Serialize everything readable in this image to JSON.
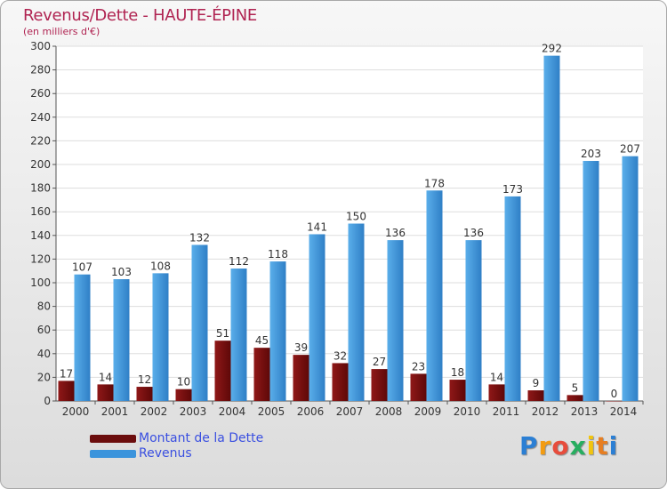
{
  "chart_data": {
    "type": "bar",
    "title": "Revenus/Dette - HAUTE-ÉPINE",
    "subtitle": "(en milliers d'€)",
    "categories": [
      "2000",
      "2001",
      "2002",
      "2003",
      "2004",
      "2005",
      "2006",
      "2007",
      "2008",
      "2009",
      "2010",
      "2011",
      "2012",
      "2013",
      "2014"
    ],
    "series": [
      {
        "name": "Montant de la Dette",
        "color": "#7a1010",
        "values": [
          17,
          14,
          12,
          10,
          51,
          45,
          39,
          32,
          27,
          23,
          18,
          14,
          9,
          5,
          0
        ]
      },
      {
        "name": "Revenus",
        "color": "#3b94dc",
        "values": [
          107,
          103,
          108,
          132,
          112,
          118,
          141,
          150,
          136,
          178,
          136,
          173,
          292,
          203,
          207
        ]
      }
    ],
    "ylim": [
      0,
      300
    ],
    "yticks": [
      0,
      20,
      40,
      60,
      80,
      100,
      120,
      140,
      160,
      180,
      200,
      220,
      240,
      260,
      280,
      300
    ],
    "grid": true,
    "legend": "bottom-left"
  },
  "logo": {
    "letters": [
      "P",
      "r",
      "o",
      "x",
      "i",
      "t",
      "i"
    ],
    "colors": [
      "#2b7fd4",
      "#f39c12",
      "#e74c3c",
      "#27ae60",
      "#f1c40f",
      "#e67e22",
      "#2b7fd4"
    ]
  }
}
